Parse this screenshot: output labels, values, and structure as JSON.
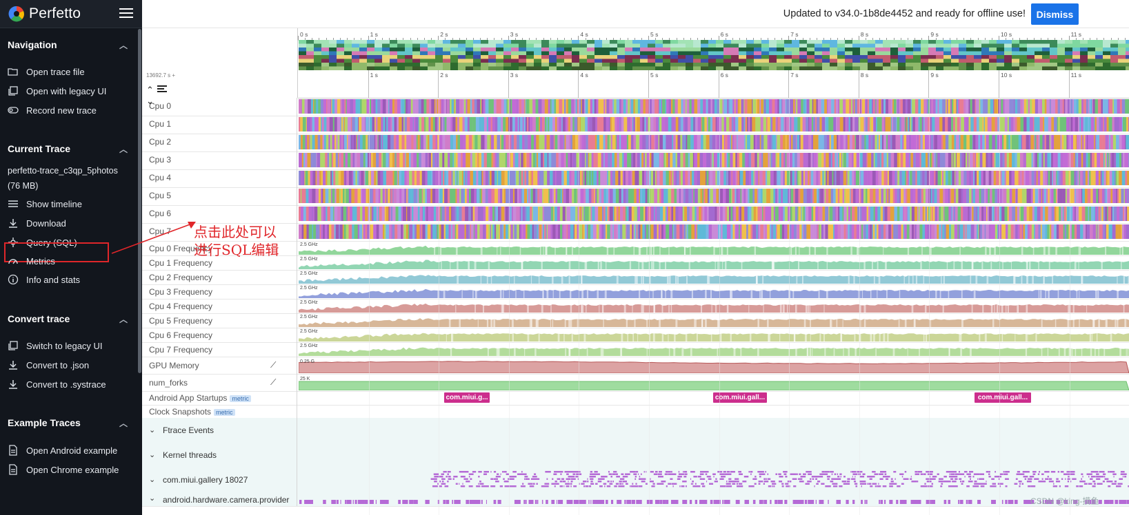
{
  "app": {
    "name": "Perfetto"
  },
  "sidebar": {
    "sections": {
      "navigation": {
        "title": "Navigation",
        "items": [
          "Open trace file",
          "Open with legacy UI",
          "Record new trace"
        ]
      },
      "current_trace": {
        "title": "Current Trace",
        "trace_name": "perfetto-trace_c3qp_5photos (76 MB)",
        "items": [
          "Show timeline",
          "Download",
          "Query (SQL)",
          "Metrics",
          "Info and stats"
        ]
      },
      "convert_trace": {
        "title": "Convert trace",
        "items": [
          "Switch to legacy UI",
          "Convert to .json",
          "Convert to .systrace"
        ]
      },
      "example_traces": {
        "title": "Example Traces",
        "items": [
          "Open Android example",
          "Open Chrome example"
        ]
      }
    }
  },
  "topbar": {
    "message": "Updated to v34.0-1b8de4452 and ready for offline use!",
    "dismiss_label": "Dismiss"
  },
  "timeline": {
    "start_timestamp": "13692.7 s +",
    "overview_labels": [
      "0 s",
      "1 s",
      "2 s",
      "3 s",
      "4 s",
      "5 s",
      "6 s",
      "7 s",
      "8 s",
      "9 s",
      "10 s",
      "11 s"
    ],
    "axis_labels": [
      "1 s",
      "2 s",
      "3 s",
      "4 s",
      "5 s",
      "6 s",
      "7 s",
      "8 s",
      "9 s",
      "10 s",
      "11 s"
    ]
  },
  "tracks": {
    "cpu": [
      "Cpu 0",
      "Cpu 1",
      "Cpu 2",
      "Cpu 3",
      "Cpu 4",
      "Cpu 5",
      "Cpu 6",
      "Cpu 7"
    ],
    "cpu_freq": [
      "Cpu 0 Frequency",
      "Cpu 1 Frequency",
      "Cpu 2 Frequency",
      "Cpu 3 Frequency",
      "Cpu 4 Frequency",
      "Cpu 5 Frequency",
      "Cpu 6 Frequency",
      "Cpu 7 Frequency"
    ],
    "freq_scale": "2.5 GHz",
    "gpu_memory": {
      "name": "GPU Memory",
      "scale": "0.25 G"
    },
    "num_forks": {
      "name": "num_forks",
      "scale": "25 K"
    },
    "app_startups": {
      "name": "Android App Startups",
      "badge": "metric",
      "slices": [
        "com.miui.g...",
        "com.miui.gall...",
        "com.miui.gall..."
      ]
    },
    "clock_snapshots": {
      "name": "Clock Snapshots",
      "badge": "metric"
    },
    "groups": [
      "Ftrace Events",
      "Kernel threads",
      "com.miui.gallery 18027",
      "android.hardware.camera.provider"
    ]
  },
  "colors": {
    "sidebar_bg": "#12161d",
    "accent": "#1a73e8",
    "annotation": "#e0262a",
    "startup_slice": "#cc2e8d"
  },
  "annotation": {
    "line1": "点击此处可以",
    "line2": "进行SQL编辑"
  },
  "watermark": "CSDN @king-摸鱼"
}
